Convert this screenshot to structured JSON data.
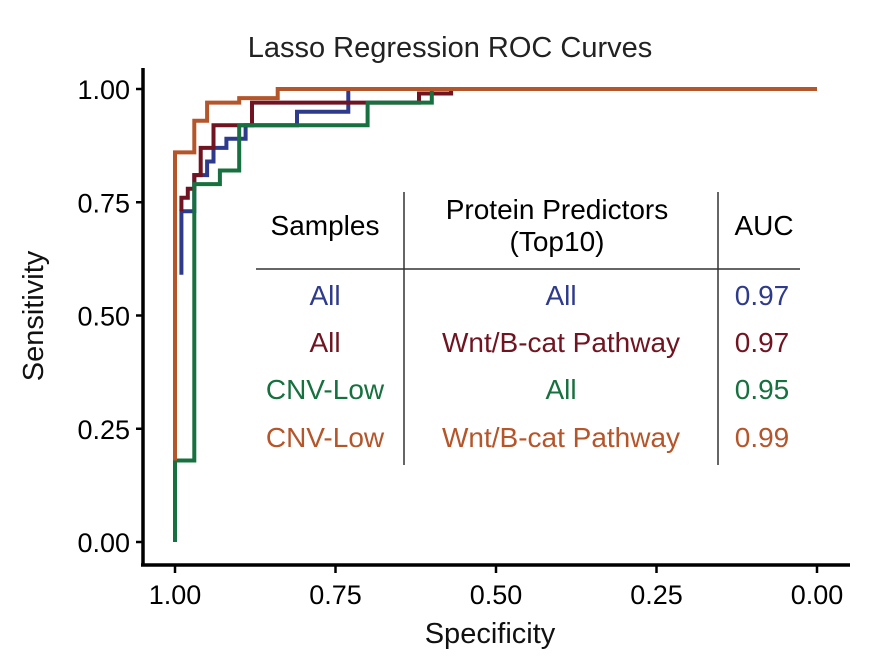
{
  "chart_data": {
    "type": "line",
    "title": "Lasso Regression ROC Curves",
    "xlabel": "Specificity",
    "ylabel": "Sensitivity",
    "xlim": [
      1.0,
      0.0
    ],
    "ylim": [
      0.0,
      1.0
    ],
    "x_reversed": true,
    "x_ticks": [
      "1.00",
      "0.75",
      "0.50",
      "0.25",
      "0.00"
    ],
    "y_ticks": [
      "0.00",
      "0.25",
      "0.50",
      "0.75",
      "1.00"
    ],
    "grid": false,
    "series": [
      {
        "color": "#2e3a8c",
        "points": [
          [
            0.99,
            0.59
          ],
          [
            0.99,
            0.73
          ],
          [
            0.97,
            0.73
          ],
          [
            0.97,
            0.81
          ],
          [
            0.95,
            0.81
          ],
          [
            0.95,
            0.84
          ],
          [
            0.94,
            0.84
          ],
          [
            0.94,
            0.87
          ],
          [
            0.92,
            0.87
          ],
          [
            0.92,
            0.89
          ],
          [
            0.89,
            0.89
          ],
          [
            0.89,
            0.92
          ],
          [
            0.81,
            0.92
          ],
          [
            0.81,
            0.95
          ],
          [
            0.73,
            0.95
          ],
          [
            0.73,
            1.0
          ],
          [
            0.0,
            1.0
          ]
        ]
      },
      {
        "color": "#6f1420",
        "points": [
          [
            0.99,
            0.73
          ],
          [
            0.99,
            0.76
          ],
          [
            0.98,
            0.76
          ],
          [
            0.98,
            0.78
          ],
          [
            0.97,
            0.78
          ],
          [
            0.97,
            0.81
          ],
          [
            0.96,
            0.81
          ],
          [
            0.96,
            0.87
          ],
          [
            0.94,
            0.87
          ],
          [
            0.94,
            0.92
          ],
          [
            0.88,
            0.92
          ],
          [
            0.88,
            0.97
          ],
          [
            0.62,
            0.97
          ],
          [
            0.62,
            0.99
          ],
          [
            0.57,
            0.99
          ],
          [
            0.57,
            1.0
          ],
          [
            0.0,
            1.0
          ]
        ]
      },
      {
        "color": "#17703f",
        "points": [
          [
            1.0,
            0.0
          ],
          [
            1.0,
            0.18
          ],
          [
            0.97,
            0.18
          ],
          [
            0.97,
            0.79
          ],
          [
            0.93,
            0.79
          ],
          [
            0.93,
            0.82
          ],
          [
            0.9,
            0.82
          ],
          [
            0.9,
            0.92
          ],
          [
            0.7,
            0.92
          ],
          [
            0.7,
            0.97
          ],
          [
            0.6,
            0.97
          ],
          [
            0.6,
            1.0
          ],
          [
            0.0,
            1.0
          ]
        ]
      },
      {
        "color": "#b5552a",
        "points": [
          [
            1.0,
            0.18
          ],
          [
            1.0,
            0.86
          ],
          [
            0.97,
            0.86
          ],
          [
            0.97,
            0.93
          ],
          [
            0.95,
            0.93
          ],
          [
            0.95,
            0.97
          ],
          [
            0.9,
            0.97
          ],
          [
            0.9,
            0.98
          ],
          [
            0.84,
            0.98
          ],
          [
            0.84,
            1.0
          ],
          [
            0.0,
            1.0
          ]
        ]
      }
    ],
    "table": {
      "headers": {
        "samples": "Samples",
        "predictors_line1": "Protein Predictors",
        "predictors_line2": "(Top10)",
        "auc": "AUC"
      },
      "rows": [
        {
          "samples": "All",
          "predictors": "All",
          "auc": "0.97",
          "color": "#2e3a8c"
        },
        {
          "samples": "All",
          "predictors": "Wnt/B-cat Pathway",
          "auc": "0.97",
          "color": "#6f1420"
        },
        {
          "samples": "CNV-Low",
          "predictors": "All",
          "auc": "0.95",
          "color": "#17703f"
        },
        {
          "samples": "CNV-Low",
          "predictors": "Wnt/B-cat Pathway",
          "auc": "0.99",
          "color": "#b5552a"
        }
      ]
    }
  }
}
